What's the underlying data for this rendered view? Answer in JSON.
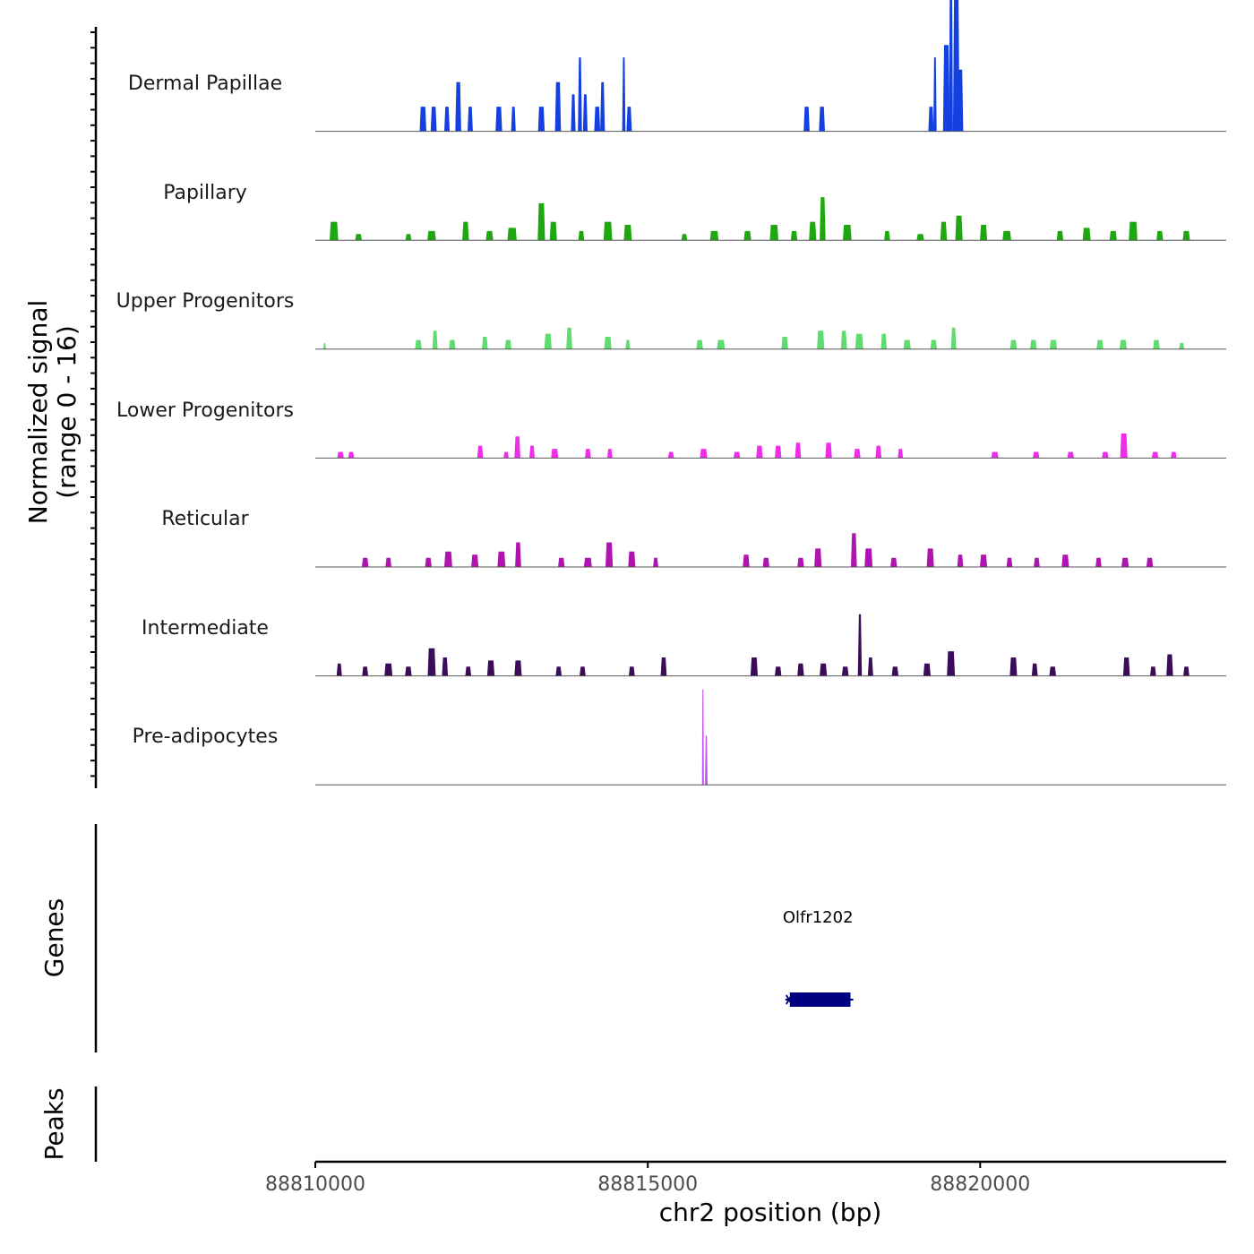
{
  "chart_data": {
    "type": "area",
    "title": "",
    "xlabel": "chr2 position (bp)",
    "ylabel": "Normalized signal",
    "ylabel_range": "(range 0 - 16)",
    "ylim": [
      0,
      16
    ],
    "xlim": [
      88810000,
      88823700
    ],
    "x_ticks": [
      88810000,
      88815000,
      88820000
    ],
    "x_tick_labels": [
      "88810000",
      "88815000",
      "88820000"
    ],
    "series": [
      {
        "name": "Dermal Papillae",
        "color": "#1540e0",
        "peaks": [
          [
            88811620,
            100,
            4
          ],
          [
            88811780,
            90,
            4
          ],
          [
            88811980,
            80,
            4
          ],
          [
            88812150,
            90,
            8
          ],
          [
            88812330,
            80,
            4
          ],
          [
            88812760,
            100,
            4
          ],
          [
            88812980,
            70,
            4
          ],
          [
            88813400,
            100,
            4
          ],
          [
            88813650,
            90,
            8
          ],
          [
            88813880,
            70,
            6
          ],
          [
            88813980,
            60,
            12
          ],
          [
            88814060,
            70,
            6
          ],
          [
            88814240,
            90,
            4
          ],
          [
            88814320,
            70,
            8
          ],
          [
            88814640,
            50,
            12
          ],
          [
            88814720,
            80,
            4
          ],
          [
            88817390,
            90,
            4
          ],
          [
            88817620,
            90,
            4
          ],
          [
            88819260,
            80,
            4
          ],
          [
            88819320,
            50,
            12
          ],
          [
            88819490,
            100,
            14
          ],
          [
            88819560,
            60,
            28
          ],
          [
            88819640,
            100,
            22
          ],
          [
            88819700,
            90,
            10
          ]
        ]
      },
      {
        "name": "Papillary",
        "color": "#1ea810",
        "peaks": [
          [
            88810280,
            130,
            3
          ],
          [
            88810650,
            100,
            1
          ],
          [
            88811400,
            90,
            1
          ],
          [
            88811750,
            130,
            1.5
          ],
          [
            88812260,
            100,
            3
          ],
          [
            88812620,
            110,
            1.5
          ],
          [
            88812960,
            140,
            2
          ],
          [
            88813400,
            110,
            6
          ],
          [
            88813580,
            110,
            3
          ],
          [
            88814000,
            90,
            1.5
          ],
          [
            88814400,
            130,
            3
          ],
          [
            88814700,
            120,
            2.5
          ],
          [
            88815550,
            90,
            1
          ],
          [
            88816000,
            130,
            1.5
          ],
          [
            88816500,
            110,
            1.5
          ],
          [
            88816900,
            130,
            2.5
          ],
          [
            88817200,
            100,
            1.5
          ],
          [
            88817480,
            110,
            3
          ],
          [
            88817630,
            90,
            7
          ],
          [
            88818000,
            130,
            2.5
          ],
          [
            88818600,
            90,
            1.5
          ],
          [
            88819100,
            110,
            1
          ],
          [
            88819450,
            100,
            3
          ],
          [
            88819680,
            110,
            4
          ],
          [
            88820050,
            110,
            2.5
          ],
          [
            88820400,
            130,
            1.5
          ],
          [
            88821200,
            100,
            1.5
          ],
          [
            88821600,
            120,
            2
          ],
          [
            88822000,
            110,
            1.5
          ],
          [
            88822300,
            130,
            3
          ],
          [
            88822700,
            100,
            1.5
          ],
          [
            88823100,
            110,
            1.5
          ]
        ]
      },
      {
        "name": "Upper Progenitors",
        "color": "#5fdc6f",
        "peaks": [
          [
            88810140,
            40,
            1
          ],
          [
            88811550,
            100,
            1.5
          ],
          [
            88811800,
            80,
            3
          ],
          [
            88812060,
            100,
            1.5
          ],
          [
            88812550,
            90,
            2
          ],
          [
            88812900,
            100,
            1.5
          ],
          [
            88813500,
            110,
            2.5
          ],
          [
            88813820,
            90,
            3.5
          ],
          [
            88814400,
            110,
            2
          ],
          [
            88814700,
            70,
            1.5
          ],
          [
            88815780,
            100,
            1.5
          ],
          [
            88816100,
            120,
            1.5
          ],
          [
            88817060,
            100,
            2
          ],
          [
            88817600,
            110,
            3
          ],
          [
            88817950,
            90,
            3
          ],
          [
            88818180,
            120,
            2.5
          ],
          [
            88818550,
            90,
            2.5
          ],
          [
            88818900,
            110,
            1.5
          ],
          [
            88819300,
            100,
            1.5
          ],
          [
            88819600,
            80,
            3.5
          ],
          [
            88820500,
            100,
            1.5
          ],
          [
            88820800,
            100,
            1.5
          ],
          [
            88821100,
            110,
            1.5
          ],
          [
            88821800,
            100,
            1.5
          ],
          [
            88822150,
            110,
            1.5
          ],
          [
            88822650,
            100,
            1.5
          ],
          [
            88823030,
            80,
            1
          ]
        ]
      },
      {
        "name": "Lower Progenitors",
        "color": "#ee2ee8",
        "peaks": [
          [
            88810380,
            100,
            1
          ],
          [
            88810540,
            90,
            1
          ],
          [
            88812480,
            90,
            2
          ],
          [
            88812870,
            80,
            1
          ],
          [
            88813040,
            90,
            3.5
          ],
          [
            88813260,
            80,
            2
          ],
          [
            88813600,
            110,
            1.5
          ],
          [
            88814100,
            90,
            1.5
          ],
          [
            88814430,
            80,
            1.5
          ],
          [
            88815350,
            90,
            1
          ],
          [
            88815840,
            110,
            1.5
          ],
          [
            88816340,
            100,
            1
          ],
          [
            88816680,
            100,
            2
          ],
          [
            88816960,
            100,
            2
          ],
          [
            88817260,
            90,
            2.5
          ],
          [
            88817720,
            100,
            2.5
          ],
          [
            88818150,
            100,
            1.5
          ],
          [
            88818470,
            90,
            2
          ],
          [
            88818800,
            80,
            1.5
          ],
          [
            88820220,
            110,
            1
          ],
          [
            88820840,
            100,
            1
          ],
          [
            88821360,
            100,
            1
          ],
          [
            88821880,
            100,
            1
          ],
          [
            88822160,
            110,
            4
          ],
          [
            88822630,
            100,
            1
          ],
          [
            88822910,
            90,
            1
          ]
        ]
      },
      {
        "name": "Reticular",
        "color": "#b014b0",
        "peaks": [
          [
            88810750,
            100,
            1.5
          ],
          [
            88811100,
            90,
            1.5
          ],
          [
            88811700,
            100,
            1.5
          ],
          [
            88812000,
            120,
            2.5
          ],
          [
            88812400,
            110,
            2
          ],
          [
            88812800,
            120,
            2.5
          ],
          [
            88813050,
            90,
            4
          ],
          [
            88813700,
            100,
            1.5
          ],
          [
            88814100,
            120,
            1.5
          ],
          [
            88814420,
            110,
            4
          ],
          [
            88814760,
            110,
            2.5
          ],
          [
            88815120,
            80,
            1.5
          ],
          [
            88816480,
            100,
            2
          ],
          [
            88816780,
            100,
            1.5
          ],
          [
            88817300,
            100,
            1.5
          ],
          [
            88817560,
            110,
            3
          ],
          [
            88818100,
            90,
            5.5
          ],
          [
            88818320,
            120,
            3
          ],
          [
            88818700,
            100,
            1.5
          ],
          [
            88819250,
            110,
            3
          ],
          [
            88819700,
            90,
            2
          ],
          [
            88820050,
            110,
            2
          ],
          [
            88820440,
            90,
            1.5
          ],
          [
            88820850,
            90,
            1.5
          ],
          [
            88821280,
            110,
            2
          ],
          [
            88821780,
            90,
            1.5
          ],
          [
            88822180,
            110,
            1.5
          ],
          [
            88822550,
            100,
            1.5
          ]
        ]
      },
      {
        "name": "Intermediate",
        "color": "#3a0c5a",
        "peaks": [
          [
            88810360,
            80,
            2
          ],
          [
            88810750,
            90,
            1.5
          ],
          [
            88811100,
            120,
            2
          ],
          [
            88811400,
            100,
            1.5
          ],
          [
            88811750,
            120,
            4.5
          ],
          [
            88811950,
            90,
            3
          ],
          [
            88812300,
            90,
            1.5
          ],
          [
            88812640,
            110,
            2.5
          ],
          [
            88813050,
            110,
            2.5
          ],
          [
            88813660,
            90,
            1.5
          ],
          [
            88814020,
            90,
            1.5
          ],
          [
            88814760,
            90,
            1.5
          ],
          [
            88815240,
            90,
            3
          ],
          [
            88816600,
            110,
            3
          ],
          [
            88816960,
            100,
            1.5
          ],
          [
            88817300,
            100,
            2
          ],
          [
            88817640,
            110,
            2
          ],
          [
            88817970,
            100,
            1.5
          ],
          [
            88818190,
            60,
            10
          ],
          [
            88818350,
            80,
            3
          ],
          [
            88818720,
            100,
            1.5
          ],
          [
            88819200,
            110,
            2
          ],
          [
            88819560,
            120,
            4
          ],
          [
            88820500,
            110,
            3
          ],
          [
            88820820,
            90,
            2
          ],
          [
            88821090,
            100,
            1.5
          ],
          [
            88822200,
            100,
            3
          ],
          [
            88822600,
            90,
            1.5
          ],
          [
            88822850,
            100,
            3.5
          ],
          [
            88823100,
            90,
            1.5
          ]
        ]
      },
      {
        "name": "Pre-adipocytes",
        "color": "#c257ef",
        "peaks": [
          [
            88815830,
            30,
            15.5
          ],
          [
            88815880,
            40,
            8
          ]
        ]
      }
    ],
    "gene_track": {
      "label": "Genes",
      "genes": [
        {
          "name": "Olfr1202",
          "start": 88817070,
          "end": 88818050,
          "strand": "-",
          "color": "#000080"
        }
      ]
    },
    "peak_track": {
      "label": "Peaks",
      "peaks": []
    }
  }
}
